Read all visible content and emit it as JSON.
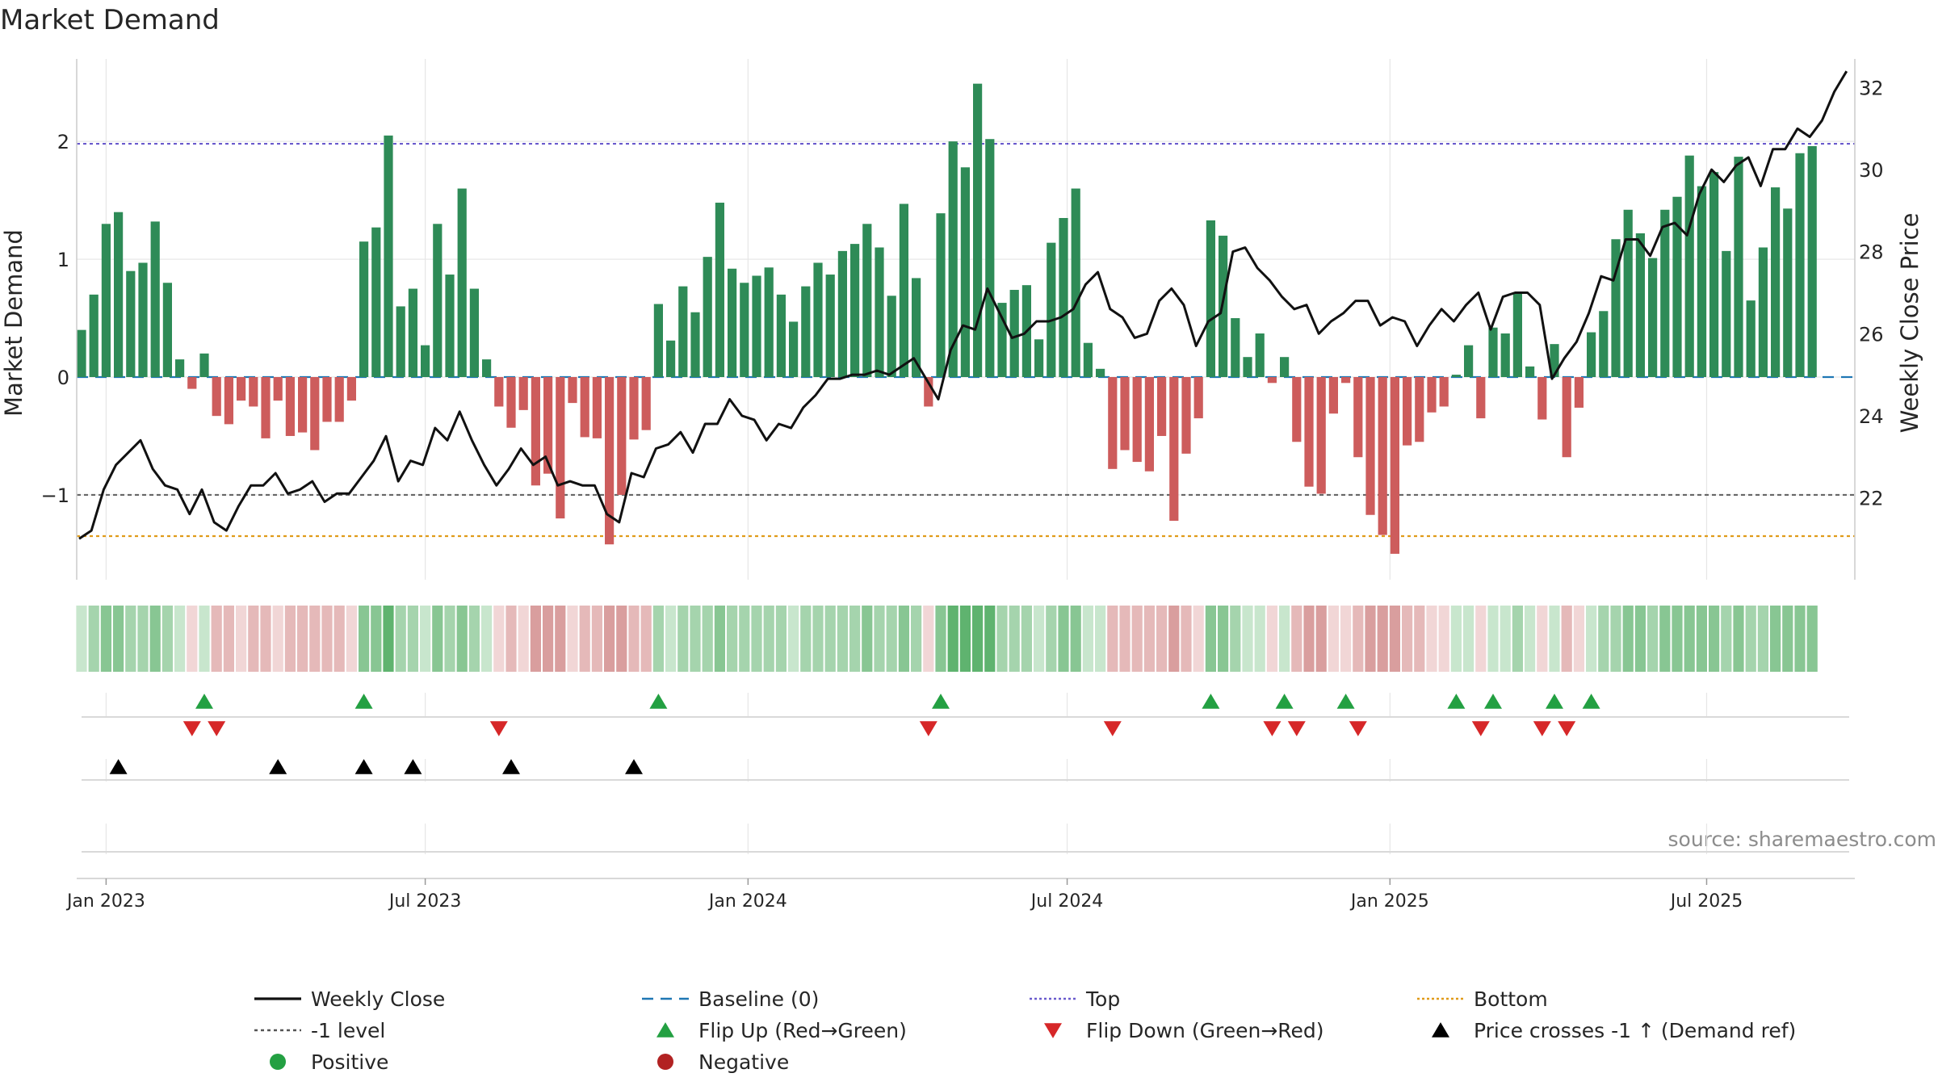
{
  "chart_data": {
    "type": "bar",
    "title": "Market Demand",
    "ylabel": "Market Demand",
    "y2label": "Weekly Close Price",
    "source": "source: sharemaestro.com",
    "ylim": [
      -1.72,
      2.7
    ],
    "y2lim": [
      20.0,
      32.7
    ],
    "yticks": [
      {
        "v": 2,
        "label": "2"
      },
      {
        "v": 1,
        "label": "1"
      },
      {
        "v": 0,
        "label": "0"
      },
      {
        "v": -1,
        "label": "−1"
      }
    ],
    "y2ticks": [
      {
        "v": 22,
        "label": "22"
      },
      {
        "v": 24,
        "label": "24"
      },
      {
        "v": 26,
        "label": "26"
      },
      {
        "v": 28,
        "label": "28"
      },
      {
        "v": 30,
        "label": "30"
      },
      {
        "v": 32,
        "label": "32"
      }
    ],
    "xticks": [
      {
        "i": 2,
        "label": "Jan 2023"
      },
      {
        "i": 28,
        "label": "Jul 2023"
      },
      {
        "i": 54.3,
        "label": "Jan 2024"
      },
      {
        "i": 80.3,
        "label": "Jul 2024"
      },
      {
        "i": 106.6,
        "label": "Jan 2025"
      },
      {
        "i": 132.4,
        "label": "Jul 2025"
      }
    ],
    "reference_lines": {
      "top": 1.98,
      "bottom": -1.35,
      "minus_one": -1.0,
      "baseline": 0
    },
    "demand": [
      0.4,
      0.7,
      1.3,
      1.4,
      0.9,
      0.97,
      1.32,
      0.8,
      0.15,
      -0.1,
      0.2,
      -0.33,
      -0.4,
      -0.2,
      -0.25,
      -0.52,
      -0.2,
      -0.5,
      -0.47,
      -0.62,
      -0.38,
      -0.38,
      -0.2,
      1.15,
      1.27,
      2.05,
      0.6,
      0.75,
      0.27,
      1.3,
      0.87,
      1.6,
      0.75,
      0.15,
      -0.25,
      -0.43,
      -0.28,
      -0.92,
      -0.82,
      -1.2,
      -0.22,
      -0.51,
      -0.52,
      -1.42,
      -1.0,
      -0.53,
      -0.45,
      0.62,
      0.31,
      0.77,
      0.55,
      1.02,
      1.48,
      0.92,
      0.8,
      0.86,
      0.93,
      0.7,
      0.47,
      0.77,
      0.97,
      0.87,
      1.07,
      1.13,
      1.3,
      1.1,
      0.69,
      1.47,
      0.84,
      -0.25,
      1.39,
      2.0,
      1.78,
      2.49,
      2.02,
      0.63,
      0.74,
      0.78,
      0.32,
      1.14,
      1.35,
      1.6,
      0.29,
      0.07,
      -0.78,
      -0.62,
      -0.72,
      -0.8,
      -0.5,
      -1.22,
      -0.65,
      -0.35,
      1.33,
      1.2,
      0.5,
      0.17,
      0.37,
      -0.05,
      0.17,
      -0.55,
      -0.93,
      -0.99,
      -0.31,
      -0.05,
      -0.68,
      -1.17,
      -1.34,
      -1.5,
      -0.58,
      -0.55,
      -0.3,
      -0.25,
      0.02,
      0.27,
      -0.35,
      0.42,
      0.37,
      0.71,
      0.09,
      -0.36,
      0.28,
      -0.68,
      -0.26,
      0.38,
      0.56,
      1.17,
      1.42,
      1.22,
      1.01,
      1.42,
      1.53,
      1.88,
      1.62,
      1.74,
      1.07,
      1.87,
      0.65,
      1.1,
      1.61,
      1.43,
      1.9,
      1.96
    ],
    "close": [
      21.0,
      21.2,
      22.2,
      22.8,
      23.1,
      23.4,
      22.7,
      22.3,
      22.2,
      21.6,
      22.2,
      21.4,
      21.2,
      21.8,
      22.3,
      22.3,
      22.6,
      22.1,
      22.2,
      22.4,
      21.9,
      22.1,
      22.1,
      22.5,
      22.9,
      23.5,
      22.4,
      22.9,
      22.8,
      23.7,
      23.4,
      24.1,
      23.4,
      22.8,
      22.3,
      22.7,
      23.2,
      22.8,
      23.0,
      22.3,
      22.4,
      22.3,
      22.3,
      21.6,
      21.4,
      22.6,
      22.5,
      23.2,
      23.3,
      23.6,
      23.1,
      23.8,
      23.8,
      24.4,
      24.0,
      23.9,
      23.4,
      23.8,
      23.7,
      24.2,
      24.5,
      24.9,
      24.9,
      25.0,
      25.0,
      25.1,
      25.0,
      25.2,
      25.4,
      24.9,
      24.4,
      25.6,
      26.2,
      26.1,
      27.1,
      26.5,
      25.9,
      26.0,
      26.3,
      26.3,
      26.4,
      26.6,
      27.2,
      27.5,
      26.6,
      26.4,
      25.9,
      26.0,
      26.8,
      27.1,
      26.7,
      25.7,
      26.3,
      26.5,
      28.0,
      28.1,
      27.6,
      27.3,
      26.9,
      26.6,
      26.7,
      26.0,
      26.3,
      26.5,
      26.8,
      26.8,
      26.2,
      26.4,
      26.3,
      25.7,
      26.2,
      26.6,
      26.3,
      26.7,
      27.0,
      26.1,
      26.9,
      27.0,
      27.0,
      26.7,
      24.9,
      25.4,
      25.8,
      26.5,
      27.4,
      27.3,
      28.3,
      28.3,
      27.9,
      28.6,
      28.7,
      28.4,
      29.4,
      30.0,
      29.7,
      30.1,
      30.3,
      29.6,
      30.5,
      30.5,
      31.0,
      30.8,
      31.2,
      31.9,
      32.4
    ],
    "heat_levels": [
      1,
      2,
      3,
      3,
      2,
      2,
      3,
      2,
      1,
      -1,
      1,
      -2,
      -2,
      -1,
      -2,
      -2,
      -1,
      -2,
      -2,
      -2,
      -2,
      -2,
      -1,
      3,
      3,
      4,
      2,
      2,
      1,
      3,
      2,
      3,
      2,
      1,
      -1,
      -2,
      -1,
      -3,
      -3,
      -3,
      -1,
      -2,
      -2,
      -3,
      -3,
      -2,
      -2,
      2,
      1,
      2,
      2,
      2,
      3,
      2,
      2,
      2,
      2,
      2,
      1,
      2,
      2,
      2,
      2,
      2,
      3,
      2,
      2,
      3,
      2,
      -1,
      3,
      4,
      4,
      4,
      4,
      2,
      2,
      2,
      1,
      2,
      3,
      3,
      1,
      1,
      -2,
      -2,
      -2,
      -2,
      -2,
      -3,
      -2,
      -1,
      3,
      3,
      2,
      1,
      1,
      -1,
      1,
      -2,
      -3,
      -3,
      -1,
      -1,
      -2,
      -3,
      -3,
      -3,
      -2,
      -2,
      -1,
      -1,
      1,
      1,
      -1,
      1,
      1,
      2,
      1,
      -1,
      1,
      -2,
      -1,
      1,
      2,
      2,
      3,
      3,
      2,
      3,
      3,
      3,
      3,
      3,
      2,
      3,
      2,
      2,
      3,
      3,
      3,
      3
    ],
    "flip_up": [
      10,
      23,
      47,
      70,
      92,
      98,
      103,
      112,
      115,
      120,
      123
    ],
    "flip_down": [
      9,
      11,
      34,
      69,
      84,
      97,
      99,
      104,
      114,
      119,
      121
    ],
    "price_cross": [
      3,
      16,
      23,
      27,
      35,
      45
    ],
    "legend": [
      {
        "label": "Weekly Close",
        "kind": "line",
        "color": "#111111",
        "dash": ""
      },
      {
        "label": "Baseline (0)",
        "kind": "line",
        "color": "#1f77b4",
        "dash": "14 9"
      },
      {
        "label": "Top",
        "kind": "line",
        "color": "#6a5acd",
        "dash": "3 3"
      },
      {
        "label": "Bottom",
        "kind": "line",
        "color": "#e09b1a",
        "dash": "3 3"
      },
      {
        "label": "-1 level",
        "kind": "line",
        "color": "#555555",
        "dash": "4 4"
      },
      {
        "label": "Flip Up (Red→Green)",
        "kind": "tri-up",
        "color": "#23a042"
      },
      {
        "label": "Flip Down (Green→Red)",
        "kind": "tri-down",
        "color": "#d62728"
      },
      {
        "label": "Price crosses -1 ↑ (Demand ref)",
        "kind": "tri-up",
        "color": "#000000"
      },
      {
        "label": "Positive",
        "kind": "dot",
        "color": "#23a042"
      },
      {
        "label": "Negative",
        "kind": "dot",
        "color": "#b22222"
      }
    ],
    "colors": {
      "positive_bar": "#2e8b57",
      "negative_bar": "#cd5c5c",
      "price_line": "#111111"
    }
  }
}
